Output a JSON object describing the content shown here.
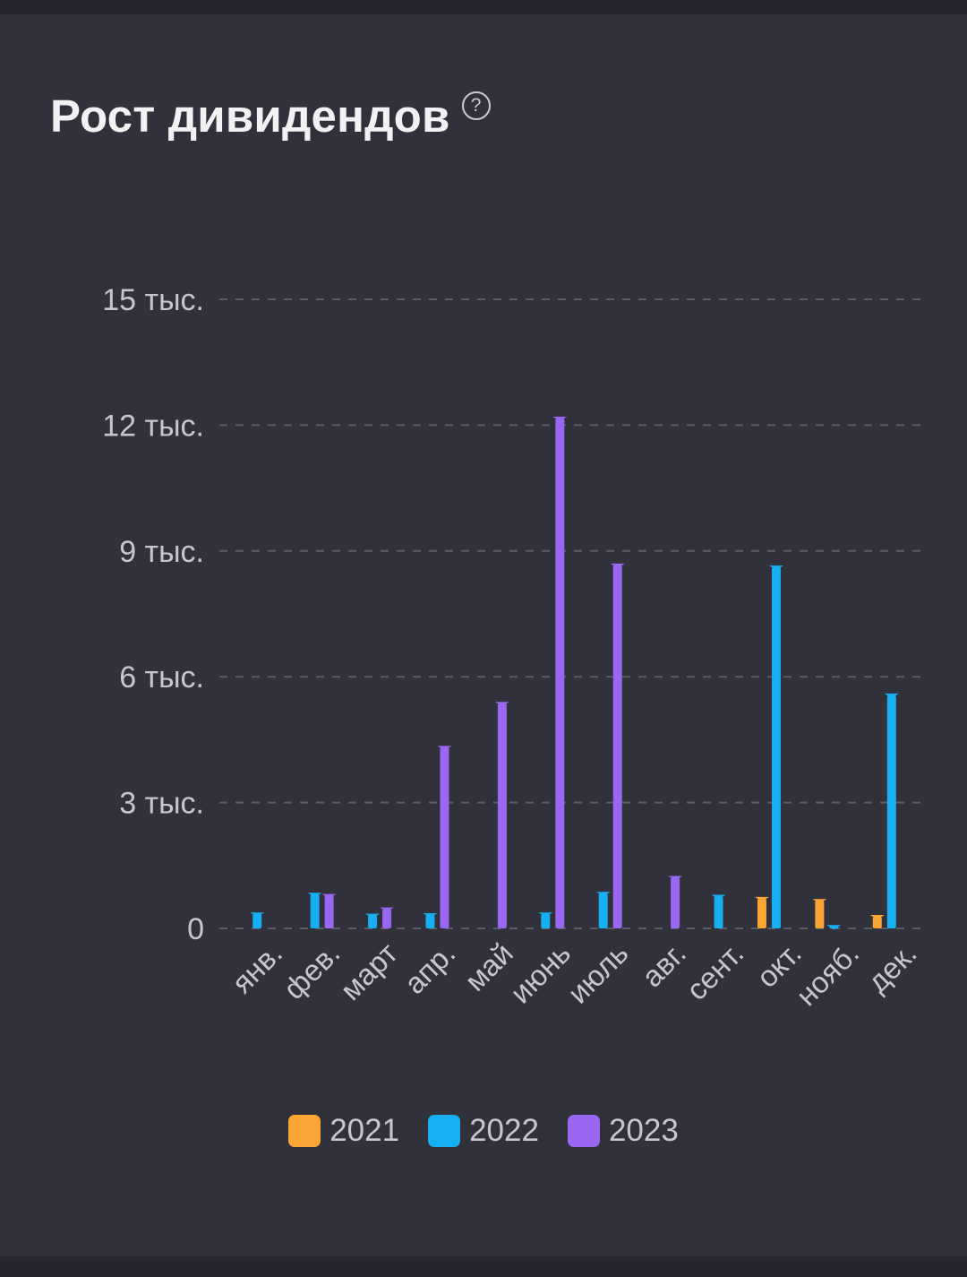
{
  "header": {
    "title": "Рост дивидендов",
    "help_icon": "question-circle-icon",
    "help_glyph": "?"
  },
  "colors": {
    "2021": "#fba535",
    "2022": "#16b0f2",
    "2023": "#9967f2",
    "grid": "#5c5c67",
    "text": "#c6c6ce"
  },
  "chart_data": {
    "type": "bar",
    "title": "Рост дивидендов",
    "categories": [
      "янв.",
      "фев.",
      "март",
      "апр.",
      "май",
      "июнь",
      "июль",
      "авг.",
      "сент.",
      "окт.",
      "нояб.",
      "дек."
    ],
    "series": [
      {
        "name": "2021",
        "color": "#fba535",
        "values": [
          0,
          0,
          0,
          0,
          0,
          0,
          0,
          0,
          0,
          750,
          700,
          320
        ]
      },
      {
        "name": "2022",
        "color": "#16b0f2",
        "values": [
          380,
          850,
          350,
          360,
          0,
          380,
          870,
          0,
          800,
          8650,
          80,
          5600
        ]
      },
      {
        "name": "2023",
        "color": "#9967f2",
        "values": [
          0,
          820,
          500,
          4350,
          5400,
          12200,
          8700,
          1250,
          0,
          0,
          0,
          0
        ]
      }
    ],
    "yticks": [
      0,
      3000,
      6000,
      9000,
      12000,
      15000
    ],
    "ytick_labels": [
      "0",
      "3 тыс.",
      "6 тыс.",
      "9 тыс.",
      "12 тыс.",
      "15 тыс."
    ],
    "ylim": [
      0,
      15000
    ],
    "grid": true,
    "legend": {
      "position": "bottom-center",
      "entries": [
        "2021",
        "2022",
        "2023"
      ]
    }
  }
}
